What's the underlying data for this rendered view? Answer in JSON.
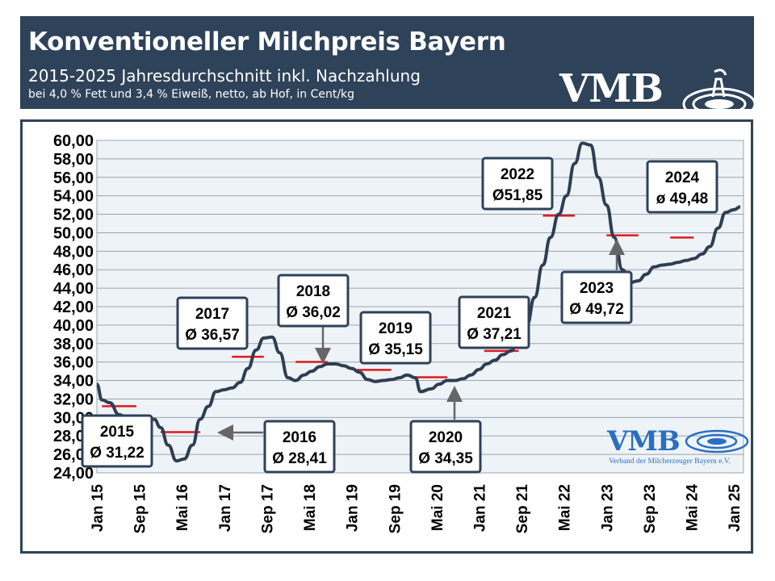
{
  "header": {
    "title": "Konventioneller Milchpreis Bayern",
    "subtitle": "2015-2025 Jahresdurchschnitt inkl. Nachzahlung",
    "note": "bei 4,0 % Fett und 3,4 % Eiweiß, netto, ab Hof, in Cent/kg",
    "logo": "VMB"
  },
  "footer_logo": {
    "text": "VMB",
    "subtext": "Verband der Milcherzeuger Bayern e.V."
  },
  "colors": {
    "header_bg": "#2e4259",
    "line": "#2f3e52",
    "average": "#e0191e",
    "plot_bg": "#eef3f7",
    "logo_blue": "#2a6fc1"
  },
  "chart_data": {
    "type": "line",
    "title": "Konventioneller Milchpreis Bayern",
    "ylim": [
      24,
      60
    ],
    "ytick_step": 2,
    "y_tick_labels": [
      "24,00",
      "26,00",
      "28,00",
      "30,00",
      "32,00",
      "34,00",
      "36,00",
      "38,00",
      "40,00",
      "42,00",
      "44,00",
      "46,00",
      "48,00",
      "50,00",
      "52,00",
      "54,00",
      "56,00",
      "58,00",
      "60,00"
    ],
    "grid": true,
    "x_tick_labels": [
      "Jan 15",
      "Sep 15",
      "Mai 16",
      "Jan 17",
      "Sep 17",
      "Mai 18",
      "Jan 19",
      "Sep 19",
      "Mai 20",
      "Jan 21",
      "Sep 21",
      "Mai 22",
      "Jan 23",
      "Sep 23",
      "Mai 24",
      "Jan 25"
    ],
    "series": [
      {
        "values": [
          [
            2015.0,
            33.6
          ],
          [
            2015.08,
            31.9
          ],
          [
            2015.2,
            31.6
          ],
          [
            2015.35,
            30.3
          ],
          [
            2015.5,
            29.8
          ],
          [
            2015.62,
            29.8
          ],
          [
            2015.75,
            29.8
          ],
          [
            2015.9,
            29.8
          ],
          [
            2016.0,
            28.9
          ],
          [
            2016.12,
            27.0
          ],
          [
            2016.25,
            25.3
          ],
          [
            2016.37,
            25.5
          ],
          [
            2016.5,
            27.0
          ],
          [
            2016.62,
            29.8
          ],
          [
            2016.75,
            31.2
          ],
          [
            2016.87,
            32.8
          ],
          [
            2017.0,
            33.0
          ],
          [
            2017.12,
            33.2
          ],
          [
            2017.25,
            33.8
          ],
          [
            2017.37,
            35.3
          ],
          [
            2017.5,
            37.3
          ],
          [
            2017.62,
            38.6
          ],
          [
            2017.75,
            38.7
          ],
          [
            2017.87,
            37.0
          ],
          [
            2018.0,
            34.3
          ],
          [
            2018.12,
            34.0
          ],
          [
            2018.25,
            34.6
          ],
          [
            2018.37,
            35.0
          ],
          [
            2018.5,
            35.5
          ],
          [
            2018.62,
            35.8
          ],
          [
            2018.75,
            35.8
          ],
          [
            2018.87,
            35.6
          ],
          [
            2019.0,
            35.3
          ],
          [
            2019.12,
            34.9
          ],
          [
            2019.25,
            34.1
          ],
          [
            2019.37,
            33.9
          ],
          [
            2019.5,
            34.0
          ],
          [
            2019.62,
            34.1
          ],
          [
            2019.75,
            34.3
          ],
          [
            2019.87,
            34.6
          ],
          [
            2020.0,
            34.3
          ],
          [
            2020.08,
            32.8
          ],
          [
            2020.25,
            33.1
          ],
          [
            2020.37,
            33.6
          ],
          [
            2020.5,
            34.0
          ],
          [
            2020.62,
            34.0
          ],
          [
            2020.75,
            34.2
          ],
          [
            2020.87,
            34.6
          ],
          [
            2021.0,
            35.2
          ],
          [
            2021.12,
            35.8
          ],
          [
            2021.25,
            36.2
          ],
          [
            2021.37,
            36.8
          ],
          [
            2021.5,
            37.2
          ],
          [
            2021.62,
            38.5
          ],
          [
            2021.75,
            40.0
          ],
          [
            2021.87,
            43.0
          ],
          [
            2022.0,
            46.5
          ],
          [
            2022.12,
            49.5
          ],
          [
            2022.25,
            52.0
          ],
          [
            2022.37,
            54.0
          ],
          [
            2022.5,
            57.5
          ],
          [
            2022.62,
            59.7
          ],
          [
            2022.75,
            59.5
          ],
          [
            2022.87,
            56.0
          ],
          [
            2023.0,
            53.0
          ],
          [
            2023.12,
            49.5
          ],
          [
            2023.25,
            46.0
          ],
          [
            2023.37,
            44.6
          ],
          [
            2023.5,
            44.8
          ],
          [
            2023.62,
            45.5
          ],
          [
            2023.75,
            46.3
          ],
          [
            2023.87,
            46.5
          ],
          [
            2024.0,
            46.6
          ],
          [
            2024.12,
            46.8
          ],
          [
            2024.25,
            47.0
          ],
          [
            2024.37,
            47.2
          ],
          [
            2024.5,
            47.7
          ],
          [
            2024.62,
            48.5
          ],
          [
            2024.75,
            50.5
          ],
          [
            2024.87,
            52.2
          ],
          [
            2025.0,
            52.5
          ],
          [
            2025.1,
            52.8
          ]
        ]
      }
    ],
    "averages": [
      {
        "year": "2015",
        "value": 31.22,
        "label_year": "2015",
        "label_value": "Ø 31,22",
        "x0": 2015.08,
        "x1": 2015.62
      },
      {
        "year": "2016",
        "value": 28.41,
        "label_year": "2016",
        "label_value": "Ø 28,41",
        "x0": 2016.0,
        "x1": 2016.62
      },
      {
        "year": "2017",
        "value": 36.57,
        "label_year": "2017",
        "label_value": "Ø 36,57",
        "x0": 2017.12,
        "x1": 2017.62
      },
      {
        "year": "2018",
        "value": 36.02,
        "label_year": "2018",
        "label_value": "Ø 36,02",
        "x0": 2018.12,
        "x1": 2018.62
      },
      {
        "year": "2019",
        "value": 35.15,
        "label_year": "2019",
        "label_value": "Ø 35,15",
        "x0": 2019.08,
        "x1": 2019.62
      },
      {
        "year": "2020",
        "value": 34.35,
        "label_year": "2020",
        "label_value": "Ø 34,35",
        "x0": 2020.0,
        "x1": 2020.5
      },
      {
        "year": "2021",
        "value": 37.21,
        "label_year": "2021",
        "label_value": "Ø 37,21",
        "x0": 2021.08,
        "x1": 2021.62
      },
      {
        "year": "2022",
        "value": 51.85,
        "label_year": "2022",
        "label_value": "Ø51,85",
        "x0": 2022.0,
        "x1": 2022.5
      },
      {
        "year": "2023",
        "value": 49.72,
        "label_year": "2023",
        "label_value": "Ø 49,72",
        "x0": 2023.0,
        "x1": 2023.5
      },
      {
        "year": "2024",
        "value": 49.48,
        "label_year": "2024",
        "label_value": "ø 49,48",
        "x0": 2024.0,
        "x1": 2024.37
      }
    ]
  }
}
